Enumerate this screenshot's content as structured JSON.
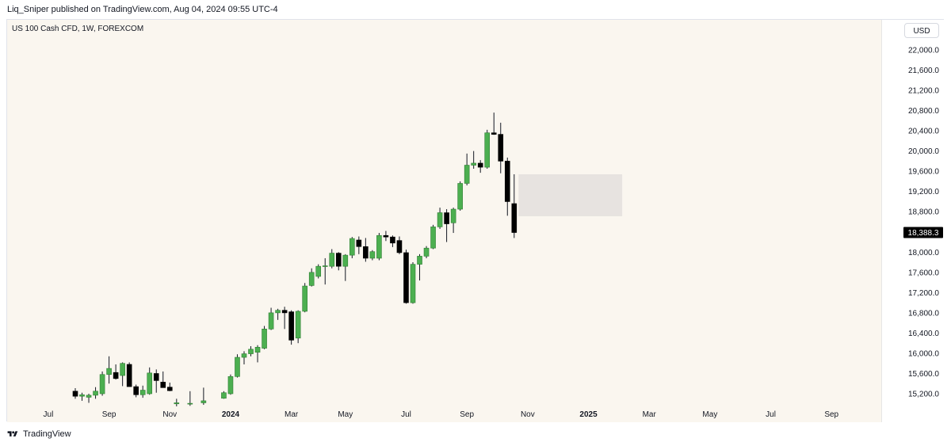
{
  "header": {
    "published_line": "Liq_Sniper published on TradingView.com, Aug 04, 2024 09:55 UTC-4"
  },
  "chart_header": {
    "symbol_line": "US 100 Cash CFD, 1W, FOREXCOM",
    "currency_button": "USD"
  },
  "footer": {
    "brand": "TradingView"
  },
  "colors": {
    "up": "#4caf50",
    "down": "#000000",
    "wick": "#131722",
    "zone": "#e7e3e0",
    "last_price_bg": "#000000",
    "plot_bg": "#faf6ef"
  },
  "chart_data": {
    "type": "candlestick",
    "interval": "1W",
    "symbol": "US 100 Cash CFD",
    "exchange": "FOREXCOM",
    "ylim": [
      14900,
      22400
    ],
    "y_ticks": [
      15200,
      15600,
      16000,
      16400,
      16800,
      17200,
      17600,
      18000,
      18400,
      18800,
      19200,
      19600,
      20000,
      20400,
      20800,
      21200,
      21600,
      22000
    ],
    "y_tick_labels": [
      "15,200.0",
      "15,600.0",
      "16,000.0",
      "16,400.0",
      "16,800.0",
      "17,200.0",
      "17,600.0",
      "18,000.0",
      "18,400.0",
      "18,800.0",
      "19,200.0",
      "19,600.0",
      "20,000.0",
      "20,400.0",
      "20,800.0",
      "21,200.0",
      "21,600.0",
      "22,000.0"
    ],
    "x_labels": [
      "May",
      "Jul",
      "Sep",
      "Nov",
      "2024",
      "Mar",
      "May",
      "Jul",
      "Sep",
      "Nov",
      "2025",
      "Mar",
      "May",
      "Jul",
      "Sep"
    ],
    "x_label_bold": [
      false,
      false,
      false,
      false,
      true,
      false,
      false,
      false,
      false,
      false,
      true,
      false,
      false,
      false,
      false
    ],
    "x_label_week_index": [
      -13,
      -4,
      5,
      14,
      23,
      32,
      40,
      49,
      58,
      67,
      76,
      85,
      94,
      103,
      112
    ],
    "candles": [
      {
        "w": 0,
        "o": 15250,
        "h": 15310,
        "l": 15100,
        "c": 15150
      },
      {
        "w": 1,
        "o": 15150,
        "h": 15220,
        "l": 15060,
        "c": 15180
      },
      {
        "w": 2,
        "o": 15130,
        "h": 15200,
        "l": 15020,
        "c": 15170
      },
      {
        "w": 3,
        "o": 15170,
        "h": 15330,
        "l": 15100,
        "c": 15250
      },
      {
        "w": 4,
        "o": 15200,
        "h": 15640,
        "l": 15160,
        "c": 15580
      },
      {
        "w": 5,
        "o": 15580,
        "h": 15940,
        "l": 15400,
        "c": 15700
      },
      {
        "w": 6,
        "o": 15620,
        "h": 15780,
        "l": 15480,
        "c": 15500
      },
      {
        "w": 7,
        "o": 15560,
        "h": 15820,
        "l": 15350,
        "c": 15800
      },
      {
        "w": 8,
        "o": 15780,
        "h": 15820,
        "l": 15340,
        "c": 15340
      },
      {
        "w": 9,
        "o": 15340,
        "h": 15380,
        "l": 15130,
        "c": 15180
      },
      {
        "w": 10,
        "o": 15180,
        "h": 15360,
        "l": 15120,
        "c": 15270
      },
      {
        "w": 11,
        "o": 15200,
        "h": 15720,
        "l": 15180,
        "c": 15610
      },
      {
        "w": 12,
        "o": 15600,
        "h": 15680,
        "l": 15220,
        "c": 15460
      },
      {
        "w": 13,
        "o": 15430,
        "h": 15640,
        "l": 15320,
        "c": 15320
      },
      {
        "w": 14,
        "o": 15330,
        "h": 15420,
        "l": 15250,
        "c": 15260
      },
      {
        "w": 15,
        "o": 15000,
        "h": 15100,
        "l": 14950,
        "c": 15020
      },
      {
        "w": 17,
        "o": 15000,
        "h": 15250,
        "l": 14960,
        "c": 15010
      },
      {
        "w": 19,
        "o": 15020,
        "h": 15320,
        "l": 14980,
        "c": 15060
      },
      {
        "w": 22,
        "o": 15110,
        "h": 15250,
        "l": 15100,
        "c": 15220
      },
      {
        "w": 23,
        "o": 15200,
        "h": 15580,
        "l": 15180,
        "c": 15540
      },
      {
        "w": 24,
        "o": 15540,
        "h": 15980,
        "l": 15520,
        "c": 15920
      },
      {
        "w": 25,
        "o": 15920,
        "h": 16040,
        "l": 15780,
        "c": 15990
      },
      {
        "w": 26,
        "o": 15990,
        "h": 16140,
        "l": 15940,
        "c": 16080
      },
      {
        "w": 27,
        "o": 16020,
        "h": 16160,
        "l": 15820,
        "c": 16120
      },
      {
        "w": 28,
        "o": 16100,
        "h": 16540,
        "l": 16080,
        "c": 16480
      },
      {
        "w": 29,
        "o": 16480,
        "h": 16900,
        "l": 16460,
        "c": 16800
      },
      {
        "w": 30,
        "o": 16800,
        "h": 16880,
        "l": 16660,
        "c": 16850
      },
      {
        "w": 31,
        "o": 16850,
        "h": 16920,
        "l": 16480,
        "c": 16800
      },
      {
        "w": 32,
        "o": 16820,
        "h": 16850,
        "l": 16170,
        "c": 16260
      },
      {
        "w": 33,
        "o": 16300,
        "h": 16850,
        "l": 16200,
        "c": 16830
      },
      {
        "w": 34,
        "o": 16830,
        "h": 17390,
        "l": 16810,
        "c": 17330
      },
      {
        "w": 35,
        "o": 17340,
        "h": 17680,
        "l": 17320,
        "c": 17600
      },
      {
        "w": 36,
        "o": 17520,
        "h": 17760,
        "l": 17480,
        "c": 17720
      },
      {
        "w": 37,
        "o": 17720,
        "h": 17880,
        "l": 17360,
        "c": 17730
      },
      {
        "w": 38,
        "o": 17720,
        "h": 18060,
        "l": 17680,
        "c": 17980
      },
      {
        "w": 39,
        "o": 17980,
        "h": 18000,
        "l": 17640,
        "c": 17720
      },
      {
        "w": 40,
        "o": 17720,
        "h": 17960,
        "l": 17430,
        "c": 17940
      },
      {
        "w": 41,
        "o": 17940,
        "h": 18300,
        "l": 17880,
        "c": 18270
      },
      {
        "w": 42,
        "o": 18240,
        "h": 18310,
        "l": 17960,
        "c": 18110
      },
      {
        "w": 43,
        "o": 18110,
        "h": 18280,
        "l": 17810,
        "c": 17880
      },
      {
        "w": 44,
        "o": 17880,
        "h": 18040,
        "l": 17840,
        "c": 18010
      },
      {
        "w": 45,
        "o": 17880,
        "h": 18380,
        "l": 17840,
        "c": 18330
      },
      {
        "w": 46,
        "o": 18330,
        "h": 18420,
        "l": 18220,
        "c": 18300
      },
      {
        "w": 47,
        "o": 18300,
        "h": 18330,
        "l": 18100,
        "c": 18180
      },
      {
        "w": 48,
        "o": 18230,
        "h": 18310,
        "l": 17960,
        "c": 17990
      },
      {
        "w": 49,
        "o": 17990,
        "h": 18050,
        "l": 16980,
        "c": 17000
      },
      {
        "w": 50,
        "o": 17000,
        "h": 17800,
        "l": 16980,
        "c": 17760
      },
      {
        "w": 51,
        "o": 17760,
        "h": 17960,
        "l": 17440,
        "c": 17920
      },
      {
        "w": 52,
        "o": 17920,
        "h": 18120,
        "l": 17880,
        "c": 18080
      },
      {
        "w": 53,
        "o": 18080,
        "h": 18540,
        "l": 18060,
        "c": 18500
      },
      {
        "w": 54,
        "o": 18500,
        "h": 18880,
        "l": 18460,
        "c": 18780
      },
      {
        "w": 55,
        "o": 18780,
        "h": 18850,
        "l": 18200,
        "c": 18560
      },
      {
        "w": 56,
        "o": 18580,
        "h": 18880,
        "l": 18380,
        "c": 18850
      },
      {
        "w": 57,
        "o": 18850,
        "h": 19400,
        "l": 18820,
        "c": 19360
      },
      {
        "w": 58,
        "o": 19360,
        "h": 19950,
        "l": 19320,
        "c": 19720
      },
      {
        "w": 59,
        "o": 19720,
        "h": 20000,
        "l": 19650,
        "c": 19760
      },
      {
        "w": 60,
        "o": 19760,
        "h": 19820,
        "l": 19570,
        "c": 19680
      },
      {
        "w": 61,
        "o": 19680,
        "h": 20420,
        "l": 19650,
        "c": 20360
      },
      {
        "w": 62,
        "o": 20360,
        "h": 20760,
        "l": 20320,
        "c": 20330
      },
      {
        "w": 63,
        "o": 20330,
        "h": 20560,
        "l": 19560,
        "c": 19800
      },
      {
        "w": 64,
        "o": 19800,
        "h": 19870,
        "l": 18720,
        "c": 19000
      },
      {
        "w": 65,
        "o": 18960,
        "h": 19540,
        "l": 18280,
        "c": 18388
      }
    ],
    "zone": {
      "w_start": 66,
      "w_end": 81,
      "y_low": 18710,
      "y_high": 19540
    },
    "last_price": 18388.3,
    "last_price_label": "18,388.3",
    "grid": false
  }
}
